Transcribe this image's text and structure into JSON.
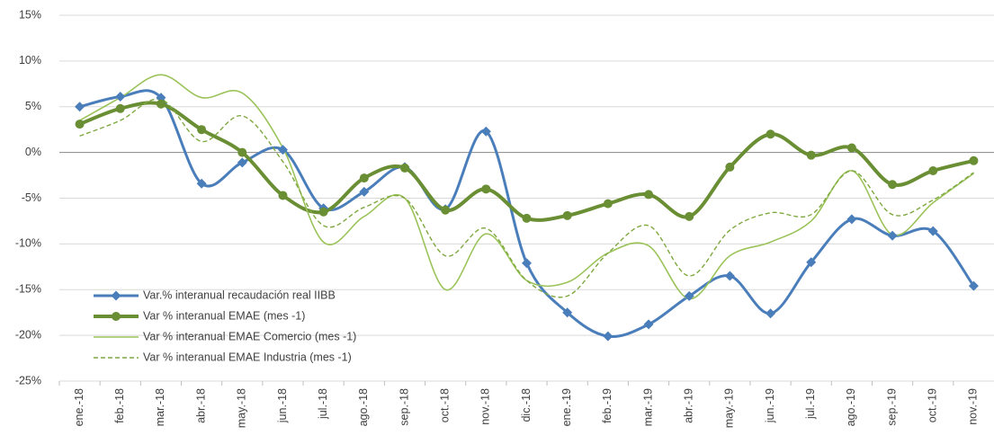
{
  "chart_data": {
    "type": "line",
    "categories": [
      "ene.-18",
      "feb.-18",
      "mar.-18",
      "abr.-18",
      "may.-18",
      "jun.-18",
      "jul.-18",
      "ago.-18",
      "sep.-18",
      "oct.-18",
      "nov.-18",
      "dic.-18",
      "ene.-19",
      "feb.-19",
      "mar.-19",
      "abr.-19",
      "may.-19",
      "jun.-19",
      "jul.-19",
      "ago.-19",
      "sep.-19",
      "oct.-19",
      "nov.-19"
    ],
    "series": [
      {
        "name": "Var.% interanual recaudación real IIBB",
        "color": "#4a7ebb",
        "width": 3,
        "marker": "diamond",
        "dash": false,
        "values": [
          5.0,
          6.1,
          6.0,
          -3.4,
          -1.1,
          0.3,
          -6.1,
          -4.3,
          -1.6,
          -6.2,
          2.3,
          -12.1,
          -17.5,
          -20.1,
          -18.8,
          -15.7,
          -13.5,
          -17.6,
          -12.0,
          -7.3,
          -9.1,
          -8.6,
          -14.6
        ]
      },
      {
        "name": "Var % interanual EMAE (mes -1)",
        "color": "#6a8e34",
        "width": 4,
        "marker": "circle",
        "dash": false,
        "values": [
          3.1,
          4.8,
          5.3,
          2.5,
          0.0,
          -4.7,
          -6.5,
          -2.8,
          -1.7,
          -6.3,
          -4.0,
          -7.2,
          -6.9,
          -5.6,
          -4.6,
          -7.0,
          -1.6,
          2.0,
          -0.3,
          0.5,
          -3.5,
          -2.0,
          -0.9
        ]
      },
      {
        "name": "Var % interanual EMAE Comercio (mes -1)",
        "color": "#9bc35a",
        "width": 1.6,
        "marker": null,
        "dash": false,
        "values": [
          3.5,
          6.0,
          8.5,
          6.0,
          6.5,
          0.5,
          -9.8,
          -7.0,
          -5.0,
          -15.0,
          -8.9,
          -14.0,
          -14.2,
          -11.0,
          -10.2,
          -16.0,
          -11.3,
          -9.8,
          -7.5,
          -2.0,
          -9.0,
          -5.5,
          -2.3
        ]
      },
      {
        "name": "Var % interanual EMAE Industria (mes -1)",
        "color": "#7ea83f",
        "width": 1.4,
        "marker": null,
        "dash": true,
        "values": [
          1.8,
          3.5,
          5.8,
          1.2,
          4.0,
          -1.0,
          -8.0,
          -6.0,
          -5.0,
          -11.3,
          -8.3,
          -14.0,
          -15.7,
          -11.0,
          -8.0,
          -13.5,
          -8.5,
          -6.6,
          -6.8,
          -2.0,
          -6.8,
          -5.2,
          -2.2
        ]
      }
    ],
    "ylim": [
      -25,
      15
    ],
    "yticks": [
      {
        "value": -25,
        "label": "-25%"
      },
      {
        "value": -20,
        "label": "-20%"
      },
      {
        "value": -15,
        "label": "-15%"
      },
      {
        "value": -10,
        "label": "-10%"
      },
      {
        "value": -5,
        "label": "-5%"
      },
      {
        "value": 0,
        "label": "0%"
      },
      {
        "value": 5,
        "label": "5%"
      },
      {
        "value": 10,
        "label": "10%"
      },
      {
        "value": 15,
        "label": "15%"
      }
    ],
    "grid": true,
    "smooth": true,
    "legend": "lower-left"
  }
}
